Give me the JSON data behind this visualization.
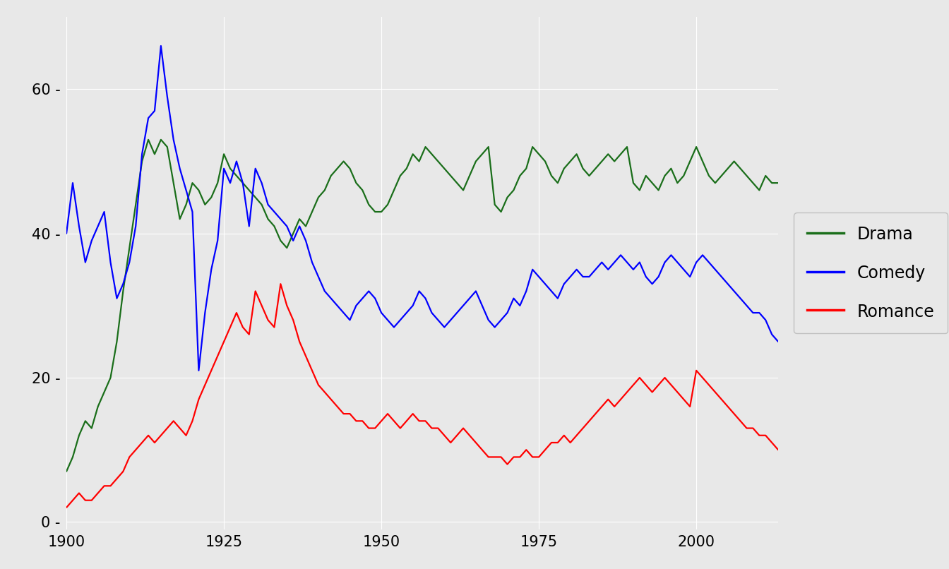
{
  "drama": {
    "years": [
      1900,
      1901,
      1902,
      1903,
      1904,
      1905,
      1906,
      1907,
      1908,
      1909,
      1910,
      1911,
      1912,
      1913,
      1914,
      1915,
      1916,
      1917,
      1918,
      1919,
      1920,
      1921,
      1922,
      1923,
      1924,
      1925,
      1926,
      1927,
      1928,
      1929,
      1930,
      1931,
      1932,
      1933,
      1934,
      1935,
      1936,
      1937,
      1938,
      1939,
      1940,
      1941,
      1942,
      1943,
      1944,
      1945,
      1946,
      1947,
      1948,
      1949,
      1950,
      1951,
      1952,
      1953,
      1954,
      1955,
      1956,
      1957,
      1958,
      1959,
      1960,
      1961,
      1962,
      1963,
      1964,
      1965,
      1966,
      1967,
      1968,
      1969,
      1970,
      1971,
      1972,
      1973,
      1974,
      1975,
      1976,
      1977,
      1978,
      1979,
      1980,
      1981,
      1982,
      1983,
      1984,
      1985,
      1986,
      1987,
      1988,
      1989,
      1990,
      1991,
      1992,
      1993,
      1994,
      1995,
      1996,
      1997,
      1998,
      1999,
      2000,
      2001,
      2002,
      2003,
      2004,
      2005,
      2006,
      2007,
      2008,
      2009,
      2010,
      2011,
      2012,
      2013
    ],
    "values": [
      7,
      9,
      12,
      14,
      13,
      16,
      18,
      20,
      25,
      32,
      38,
      44,
      50,
      53,
      51,
      53,
      52,
      47,
      42,
      44,
      47,
      46,
      44,
      45,
      47,
      51,
      49,
      48,
      47,
      46,
      45,
      44,
      42,
      41,
      39,
      38,
      40,
      42,
      41,
      43,
      45,
      46,
      48,
      49,
      50,
      49,
      47,
      46,
      44,
      43,
      43,
      44,
      46,
      48,
      49,
      51,
      50,
      52,
      51,
      50,
      49,
      48,
      47,
      46,
      48,
      50,
      51,
      52,
      44,
      43,
      45,
      46,
      48,
      49,
      52,
      51,
      50,
      48,
      47,
      49,
      50,
      51,
      49,
      48,
      49,
      50,
      51,
      50,
      51,
      52,
      47,
      46,
      48,
      47,
      46,
      48,
      49,
      47,
      48,
      50,
      52,
      50,
      48,
      47,
      48,
      49,
      50,
      49,
      48,
      47,
      46,
      48,
      47,
      47
    ]
  },
  "comedy": {
    "years": [
      1900,
      1901,
      1902,
      1903,
      1904,
      1905,
      1906,
      1907,
      1908,
      1909,
      1910,
      1911,
      1912,
      1913,
      1914,
      1915,
      1916,
      1917,
      1918,
      1919,
      1920,
      1921,
      1922,
      1923,
      1924,
      1925,
      1926,
      1927,
      1928,
      1929,
      1930,
      1931,
      1932,
      1933,
      1934,
      1935,
      1936,
      1937,
      1938,
      1939,
      1940,
      1941,
      1942,
      1943,
      1944,
      1945,
      1946,
      1947,
      1948,
      1949,
      1950,
      1951,
      1952,
      1953,
      1954,
      1955,
      1956,
      1957,
      1958,
      1959,
      1960,
      1961,
      1962,
      1963,
      1964,
      1965,
      1966,
      1967,
      1968,
      1969,
      1970,
      1971,
      1972,
      1973,
      1974,
      1975,
      1976,
      1977,
      1978,
      1979,
      1980,
      1981,
      1982,
      1983,
      1984,
      1985,
      1986,
      1987,
      1988,
      1989,
      1990,
      1991,
      1992,
      1993,
      1994,
      1995,
      1996,
      1997,
      1998,
      1999,
      2000,
      2001,
      2002,
      2003,
      2004,
      2005,
      2006,
      2007,
      2008,
      2009,
      2010,
      2011,
      2012,
      2013
    ],
    "values": [
      40,
      47,
      41,
      36,
      39,
      41,
      43,
      36,
      31,
      33,
      36,
      41,
      51,
      56,
      57,
      66,
      59,
      53,
      49,
      46,
      43,
      21,
      29,
      35,
      39,
      49,
      47,
      50,
      47,
      41,
      49,
      47,
      44,
      43,
      42,
      41,
      39,
      41,
      39,
      36,
      34,
      32,
      31,
      30,
      29,
      28,
      30,
      31,
      32,
      31,
      29,
      28,
      27,
      28,
      29,
      30,
      32,
      31,
      29,
      28,
      27,
      28,
      29,
      30,
      31,
      32,
      30,
      28,
      27,
      28,
      29,
      31,
      30,
      32,
      35,
      34,
      33,
      32,
      31,
      33,
      34,
      35,
      34,
      34,
      35,
      36,
      35,
      36,
      37,
      36,
      35,
      36,
      34,
      33,
      34,
      36,
      37,
      36,
      35,
      34,
      36,
      37,
      36,
      35,
      34,
      33,
      32,
      31,
      30,
      29,
      29,
      28,
      26,
      25
    ]
  },
  "romance": {
    "years": [
      1900,
      1901,
      1902,
      1903,
      1904,
      1905,
      1906,
      1907,
      1908,
      1909,
      1910,
      1911,
      1912,
      1913,
      1914,
      1915,
      1916,
      1917,
      1918,
      1919,
      1920,
      1921,
      1922,
      1923,
      1924,
      1925,
      1926,
      1927,
      1928,
      1929,
      1930,
      1931,
      1932,
      1933,
      1934,
      1935,
      1936,
      1937,
      1938,
      1939,
      1940,
      1941,
      1942,
      1943,
      1944,
      1945,
      1946,
      1947,
      1948,
      1949,
      1950,
      1951,
      1952,
      1953,
      1954,
      1955,
      1956,
      1957,
      1958,
      1959,
      1960,
      1961,
      1962,
      1963,
      1964,
      1965,
      1966,
      1967,
      1968,
      1969,
      1970,
      1971,
      1972,
      1973,
      1974,
      1975,
      1976,
      1977,
      1978,
      1979,
      1980,
      1981,
      1982,
      1983,
      1984,
      1985,
      1986,
      1987,
      1988,
      1989,
      1990,
      1991,
      1992,
      1993,
      1994,
      1995,
      1996,
      1997,
      1998,
      1999,
      2000,
      2001,
      2002,
      2003,
      2004,
      2005,
      2006,
      2007,
      2008,
      2009,
      2010,
      2011,
      2012,
      2013
    ],
    "values": [
      2,
      3,
      4,
      3,
      3,
      4,
      5,
      5,
      6,
      7,
      9,
      10,
      11,
      12,
      11,
      12,
      13,
      14,
      13,
      12,
      14,
      17,
      19,
      21,
      23,
      25,
      27,
      29,
      27,
      26,
      32,
      30,
      28,
      27,
      33,
      30,
      28,
      25,
      23,
      21,
      19,
      18,
      17,
      16,
      15,
      15,
      14,
      14,
      13,
      13,
      14,
      15,
      14,
      13,
      14,
      15,
      14,
      14,
      13,
      13,
      12,
      11,
      12,
      13,
      12,
      11,
      10,
      9,
      9,
      9,
      8,
      9,
      9,
      10,
      9,
      9,
      10,
      11,
      11,
      12,
      11,
      12,
      13,
      14,
      15,
      16,
      17,
      16,
      17,
      18,
      19,
      20,
      19,
      18,
      19,
      20,
      19,
      18,
      17,
      16,
      21,
      20,
      19,
      18,
      17,
      16,
      15,
      14,
      13,
      13,
      12,
      12,
      11,
      10
    ]
  },
  "drama_color": "#1a6e1a",
  "comedy_color": "#0000ff",
  "romance_color": "#ff0000",
  "background_color": "#e8e8e8",
  "plot_background_color": "#dcdcdc",
  "grid_color": "#ffffff",
  "xlim": [
    1900,
    2013
  ],
  "ylim": [
    -1,
    70
  ],
  "yticks": [
    0,
    20,
    40,
    60
  ],
  "xticks": [
    1900,
    1925,
    1950,
    1975,
    2000
  ],
  "legend_labels": [
    "Drama",
    "Comedy",
    "Romance"
  ],
  "legend_colors": [
    "#1a6e1a",
    "#0000ff",
    "#ff0000"
  ],
  "line_width": 1.6,
  "tick_fontsize": 15,
  "legend_fontsize": 17
}
